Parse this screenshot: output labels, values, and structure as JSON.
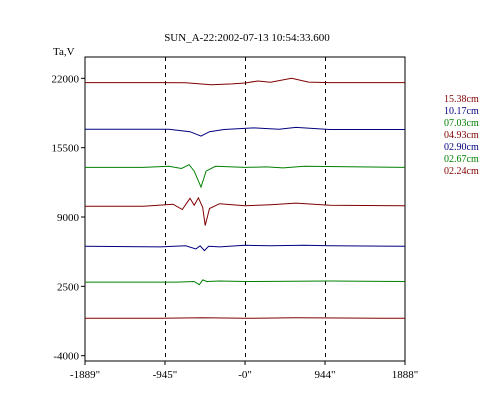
{
  "chart_data": {
    "type": "line",
    "title": "SUN_A-22:2002-07-13 10:54:33.600",
    "ylabel": "Ta,V",
    "xlabel": "",
    "xlim": [
      -1889,
      1888
    ],
    "ylim": [
      -4500,
      24000
    ],
    "x_ticks": [
      {
        "value": -1889,
        "label": "-1889\""
      },
      {
        "value": -945,
        "label": "-945\""
      },
      {
        "value": 0,
        "label": "-0\""
      },
      {
        "value": 944,
        "label": "944\""
      },
      {
        "value": 1888,
        "label": "1888\""
      }
    ],
    "y_ticks": [
      {
        "value": 22000,
        "label": "22000"
      },
      {
        "value": 15500,
        "label": "15500"
      },
      {
        "value": 9000,
        "label": "9000"
      },
      {
        "value": 2500,
        "label": "2500"
      },
      {
        "value": -4000,
        "label": "-4000"
      }
    ],
    "vertical_dashed_lines_at": [
      -945,
      0,
      944
    ],
    "grid": false,
    "legend_position": "right",
    "series": [
      {
        "name": "15.38cm",
        "color": "#800000",
        "points": [
          [
            -1889,
            21600
          ],
          [
            -1000,
            21600
          ],
          [
            -700,
            21580
          ],
          [
            -400,
            21400
          ],
          [
            -150,
            21480
          ],
          [
            0,
            21560
          ],
          [
            150,
            21750
          ],
          [
            300,
            21640
          ],
          [
            550,
            22000
          ],
          [
            750,
            21650
          ],
          [
            1000,
            21600
          ],
          [
            1888,
            21600
          ]
        ]
      },
      {
        "name": "10.17cm",
        "color": "#000080",
        "points": [
          [
            -1889,
            17220
          ],
          [
            -900,
            17220
          ],
          [
            -650,
            17000
          ],
          [
            -520,
            16580
          ],
          [
            -420,
            17000
          ],
          [
            -250,
            17200
          ],
          [
            100,
            17350
          ],
          [
            400,
            17230
          ],
          [
            600,
            17400
          ],
          [
            1000,
            17200
          ],
          [
            1888,
            17200
          ]
        ]
      },
      {
        "name": "07.03cm",
        "color": "#008000",
        "points": [
          [
            -1889,
            13650
          ],
          [
            -1200,
            13650
          ],
          [
            -900,
            13760
          ],
          [
            -750,
            13550
          ],
          [
            -660,
            13900
          ],
          [
            -600,
            13300
          ],
          [
            -520,
            11800
          ],
          [
            -460,
            13300
          ],
          [
            -350,
            13750
          ],
          [
            0,
            13650
          ],
          [
            250,
            13700
          ],
          [
            450,
            13600
          ],
          [
            700,
            13750
          ],
          [
            1888,
            13650
          ]
        ]
      },
      {
        "name": "04.93cm",
        "color": "#800000",
        "points": [
          [
            -1889,
            10000
          ],
          [
            -1200,
            10000
          ],
          [
            -850,
            10200
          ],
          [
            -740,
            9700
          ],
          [
            -650,
            10750
          ],
          [
            -600,
            10100
          ],
          [
            -550,
            10800
          ],
          [
            -500,
            9900
          ],
          [
            -470,
            8200
          ],
          [
            -420,
            9800
          ],
          [
            -300,
            10250
          ],
          [
            0,
            10050
          ],
          [
            300,
            10150
          ],
          [
            600,
            10300
          ],
          [
            1000,
            10100
          ],
          [
            1888,
            10050
          ]
        ]
      },
      {
        "name": "02.90cm",
        "color": "#000080",
        "points": [
          [
            -1889,
            6250
          ],
          [
            -1000,
            6200
          ],
          [
            -700,
            6300
          ],
          [
            -580,
            6000
          ],
          [
            -530,
            6300
          ],
          [
            -480,
            5850
          ],
          [
            -430,
            6250
          ],
          [
            -300,
            6200
          ],
          [
            0,
            6350
          ],
          [
            300,
            6300
          ],
          [
            700,
            6350
          ],
          [
            1000,
            6300
          ],
          [
            1888,
            6250
          ]
        ]
      },
      {
        "name": "02.67cm",
        "color": "#008000",
        "points": [
          [
            -1889,
            2900
          ],
          [
            -800,
            2900
          ],
          [
            -600,
            2950
          ],
          [
            -540,
            2650
          ],
          [
            -500,
            3100
          ],
          [
            -450,
            2950
          ],
          [
            -300,
            3000
          ],
          [
            0,
            2950
          ],
          [
            1000,
            3000
          ],
          [
            1888,
            2950
          ]
        ]
      },
      {
        "name": "02.24cm",
        "color": "#800000",
        "points": [
          [
            -1889,
            -500
          ],
          [
            -1000,
            -500
          ],
          [
            -500,
            -450
          ],
          [
            0,
            -500
          ],
          [
            600,
            -450
          ],
          [
            1888,
            -500
          ]
        ]
      }
    ]
  }
}
